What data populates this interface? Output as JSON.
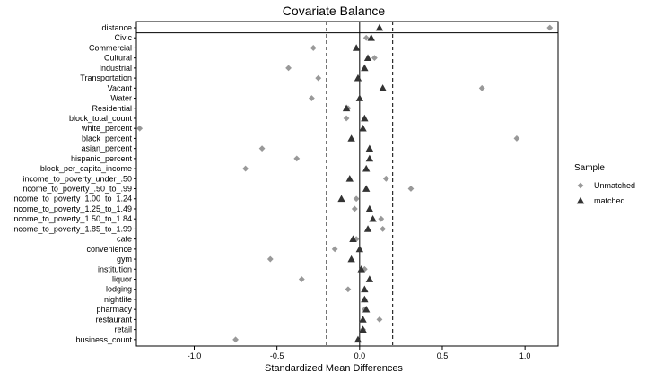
{
  "chart_data": {
    "type": "scatter",
    "title": "Covariate Balance",
    "xlabel": "Standardized Mean Differences",
    "ylabel": "",
    "xlim": [
      -1.35,
      1.2
    ],
    "x_ticks": [
      -1.0,
      -0.5,
      0.0,
      0.5,
      1.0
    ],
    "x_tick_labels": [
      "-1.0",
      "-0.5",
      "0.0",
      "0.5",
      "1.0"
    ],
    "threshold_lines": [
      -0.2,
      0.2
    ],
    "zero_line": 0.0,
    "grid": false,
    "legend": {
      "title": "Sample",
      "position": "right",
      "entries": [
        {
          "label": "Unmatched",
          "marker": "diamond",
          "color": "#999999"
        },
        {
          "label": "matched",
          "marker": "triangle",
          "color": "#333333"
        }
      ]
    },
    "categories": [
      "distance",
      "Civic",
      "Commercial",
      "Cultural",
      "Industrial",
      "Transportation",
      "Vacant",
      "Water",
      "Residential",
      "block_total_count",
      "white_percent",
      "black_percent",
      "asian_percent",
      "hispanic_percent",
      "block_per_capita_income",
      "income_to_poverty_under_.50",
      "income_to_poverty_.50_to_.99",
      "income_to_poverty_1.00_to_1.24",
      "income_to_poverty_1.25_to_1.49",
      "income_to_poverty_1.50_to_1.84",
      "income_to_poverty_1.85_to_1.99",
      "cafe",
      "convenience",
      "gym",
      "institution",
      "liquor",
      "lodging",
      "nightlife",
      "pharmacy",
      "restaurant",
      "retail",
      "business_count"
    ],
    "series": [
      {
        "name": "Unmatched",
        "color": "#999999",
        "marker": "diamond",
        "values": [
          1.15,
          0.04,
          -0.28,
          0.09,
          -0.43,
          -0.25,
          0.74,
          -0.29,
          -0.07,
          -0.08,
          -1.33,
          0.95,
          -0.59,
          -0.38,
          -0.69,
          0.16,
          0.31,
          -0.02,
          -0.03,
          0.13,
          0.14,
          -0.02,
          -0.15,
          -0.54,
          0.03,
          -0.35,
          -0.07,
          0.03,
          0.03,
          0.12,
          0.02,
          -0.75
        ]
      },
      {
        "name": "matched",
        "color": "#333333",
        "marker": "triangle",
        "values": [
          0.12,
          0.07,
          -0.02,
          0.05,
          0.03,
          -0.01,
          0.14,
          0.0,
          -0.08,
          0.03,
          0.02,
          -0.05,
          0.06,
          0.06,
          0.04,
          -0.06,
          0.04,
          -0.11,
          0.06,
          0.08,
          0.05,
          -0.04,
          0.0,
          -0.05,
          0.01,
          0.06,
          0.03,
          0.03,
          0.04,
          0.02,
          0.02,
          -0.01
        ]
      }
    ]
  }
}
